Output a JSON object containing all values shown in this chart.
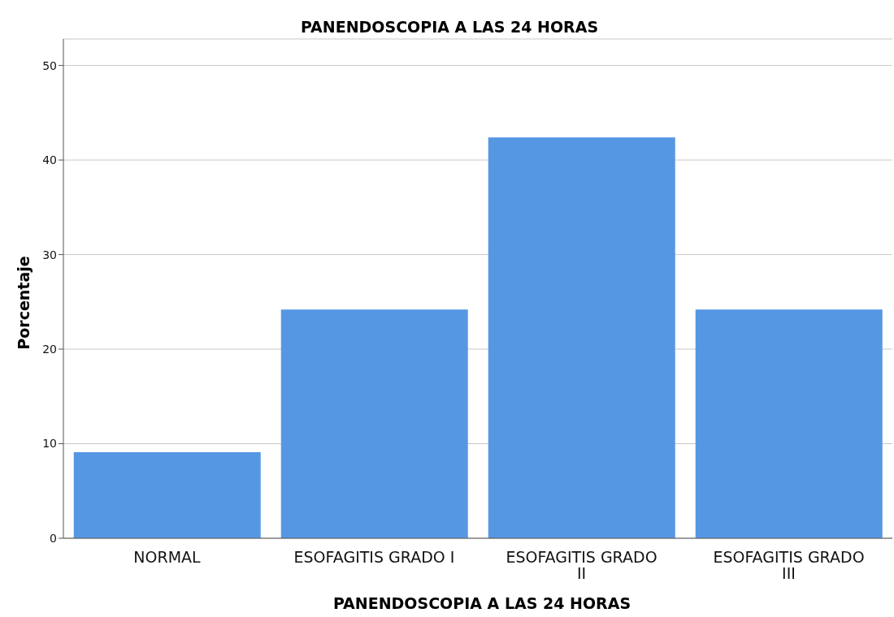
{
  "chart_data": {
    "type": "bar",
    "title": "PANENDOSCOPIA A LAS 24 HORAS",
    "xlabel": "PANENDOSCOPIA A LAS 24 HORAS",
    "ylabel": "Porcentaje",
    "categories": [
      "NORMAL",
      "ESOFAGITIS GRADO I",
      "ESOFAGITIS GRADO II",
      "ESOFAGITIS GRADO III"
    ],
    "values": [
      9.1,
      24.2,
      42.4,
      24.2
    ],
    "color": "#5697e4",
    "ylim": [
      0,
      52.8
    ],
    "yticks": [
      0,
      10,
      20,
      30,
      40,
      50
    ],
    "grid": "y",
    "legend": false
  }
}
